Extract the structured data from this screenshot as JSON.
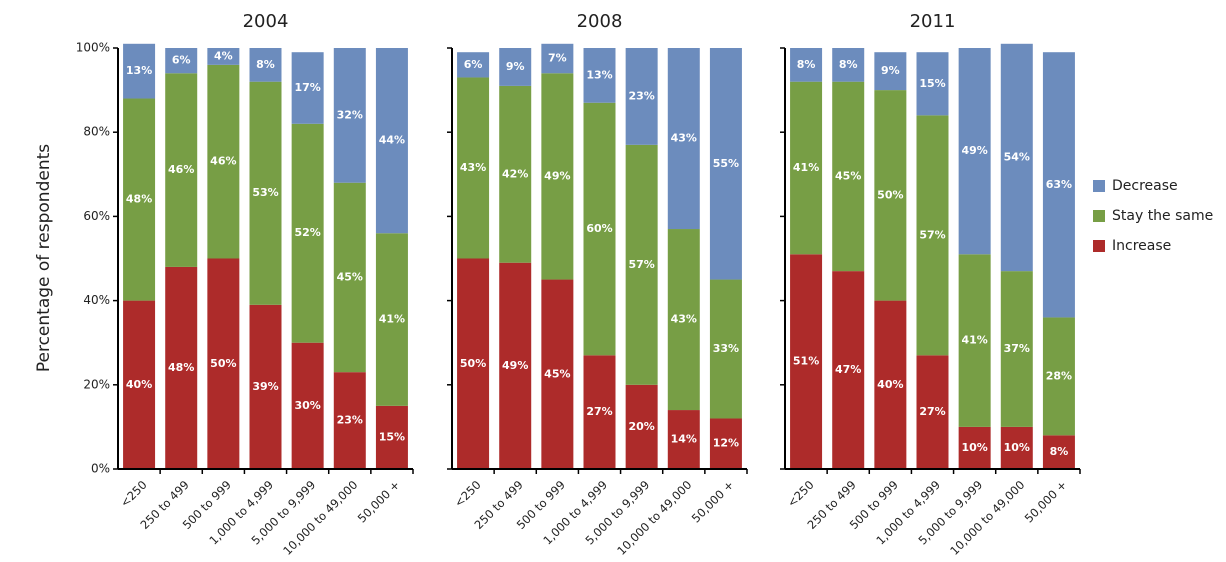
{
  "y_label": "Percentage of respondents",
  "chart_data": [
    {
      "type": "bar",
      "stacked": true,
      "title": "2004",
      "categories": [
        "<250",
        "250 to 499",
        "500 to 999",
        "1,000 to 4,999",
        "5,000 to 9,999",
        "10,000 to 49,000",
        "50,000 +"
      ],
      "series": [
        {
          "name": "Increase",
          "color": "#ad2b2a",
          "values": [
            40,
            48,
            50,
            39,
            30,
            23,
            15
          ],
          "value_labels": [
            "40%",
            "48%",
            "50%",
            "39%",
            "30%",
            "23%",
            "15%"
          ]
        },
        {
          "name": "Stay the same",
          "color": "#779e45",
          "values": [
            48,
            46,
            46,
            53,
            52,
            45,
            41
          ],
          "value_labels": [
            "48%",
            "46%",
            "46%",
            "53%",
            "52%",
            "45%",
            "41%"
          ]
        },
        {
          "name": "Decrease",
          "color": "#6c8cbd",
          "values": [
            13,
            6,
            4,
            8,
            17,
            32,
            44
          ],
          "value_labels": [
            "13%",
            "6%",
            "4%",
            "8%",
            "17%",
            "32%",
            "44%"
          ]
        }
      ],
      "ylim": [
        0,
        100
      ],
      "yticks": [
        {
          "value": 0,
          "label": "0%"
        },
        {
          "value": 20,
          "label": "20%"
        },
        {
          "value": 40,
          "label": "40%"
        },
        {
          "value": 60,
          "label": "60%"
        },
        {
          "value": 80,
          "label": "80%"
        },
        {
          "value": 100,
          "label": "100%"
        }
      ]
    },
    {
      "type": "bar",
      "stacked": true,
      "title": "2008",
      "categories": [
        "<250",
        "250 to 499",
        "500 to 999",
        "1,000 to 4,999",
        "5,000 to 9,999",
        "10,000 to 49,000",
        "50,000 +"
      ],
      "series": [
        {
          "name": "Increase",
          "color": "#ad2b2a",
          "values": [
            50,
            49,
            45,
            27,
            20,
            14,
            12
          ],
          "value_labels": [
            "50%",
            "49%",
            "45%",
            "27%",
            "20%",
            "14%",
            "12%"
          ]
        },
        {
          "name": "Stay the same",
          "color": "#779e45",
          "values": [
            43,
            42,
            49,
            60,
            57,
            43,
            33
          ],
          "value_labels": [
            "43%",
            "42%",
            "49%",
            "60%",
            "57%",
            "43%",
            "33%"
          ]
        },
        {
          "name": "Decrease",
          "color": "#6c8cbd",
          "values": [
            6,
            9,
            7,
            13,
            23,
            43,
            55
          ],
          "value_labels": [
            "6%",
            "9%",
            "7%",
            "13%",
            "23%",
            "43%",
            "55%"
          ]
        }
      ],
      "ylim": [
        0,
        100
      ],
      "yticks": [
        0,
        20,
        40,
        60,
        80,
        100
      ]
    },
    {
      "type": "bar",
      "stacked": true,
      "title": "2011",
      "categories": [
        "<250",
        "250 to 499",
        "500 to 999",
        "1,000 to 4,999",
        "5,000 to 9,999",
        "10,000 to 49,000",
        "50,000 +"
      ],
      "series": [
        {
          "name": "Increase",
          "color": "#ad2b2a",
          "values": [
            51,
            47,
            40,
            27,
            10,
            10,
            8
          ],
          "value_labels": [
            "51%",
            "47%",
            "40%",
            "27%",
            "10%",
            "10%",
            "8%"
          ]
        },
        {
          "name": "Stay the same",
          "color": "#779e45",
          "values": [
            41,
            45,
            50,
            57,
            41,
            37,
            28
          ],
          "value_labels": [
            "41%",
            "45%",
            "50%",
            "57%",
            "41%",
            "37%",
            "28%"
          ]
        },
        {
          "name": "Decrease",
          "color": "#6c8cbd",
          "values": [
            8,
            8,
            9,
            15,
            49,
            54,
            63
          ],
          "value_labels": [
            "8%",
            "8%",
            "9%",
            "15%",
            "49%",
            "54%",
            "63%"
          ]
        }
      ],
      "ylim": [
        0,
        100
      ],
      "yticks": [
        0,
        20,
        40,
        60,
        80,
        100
      ]
    }
  ]
}
